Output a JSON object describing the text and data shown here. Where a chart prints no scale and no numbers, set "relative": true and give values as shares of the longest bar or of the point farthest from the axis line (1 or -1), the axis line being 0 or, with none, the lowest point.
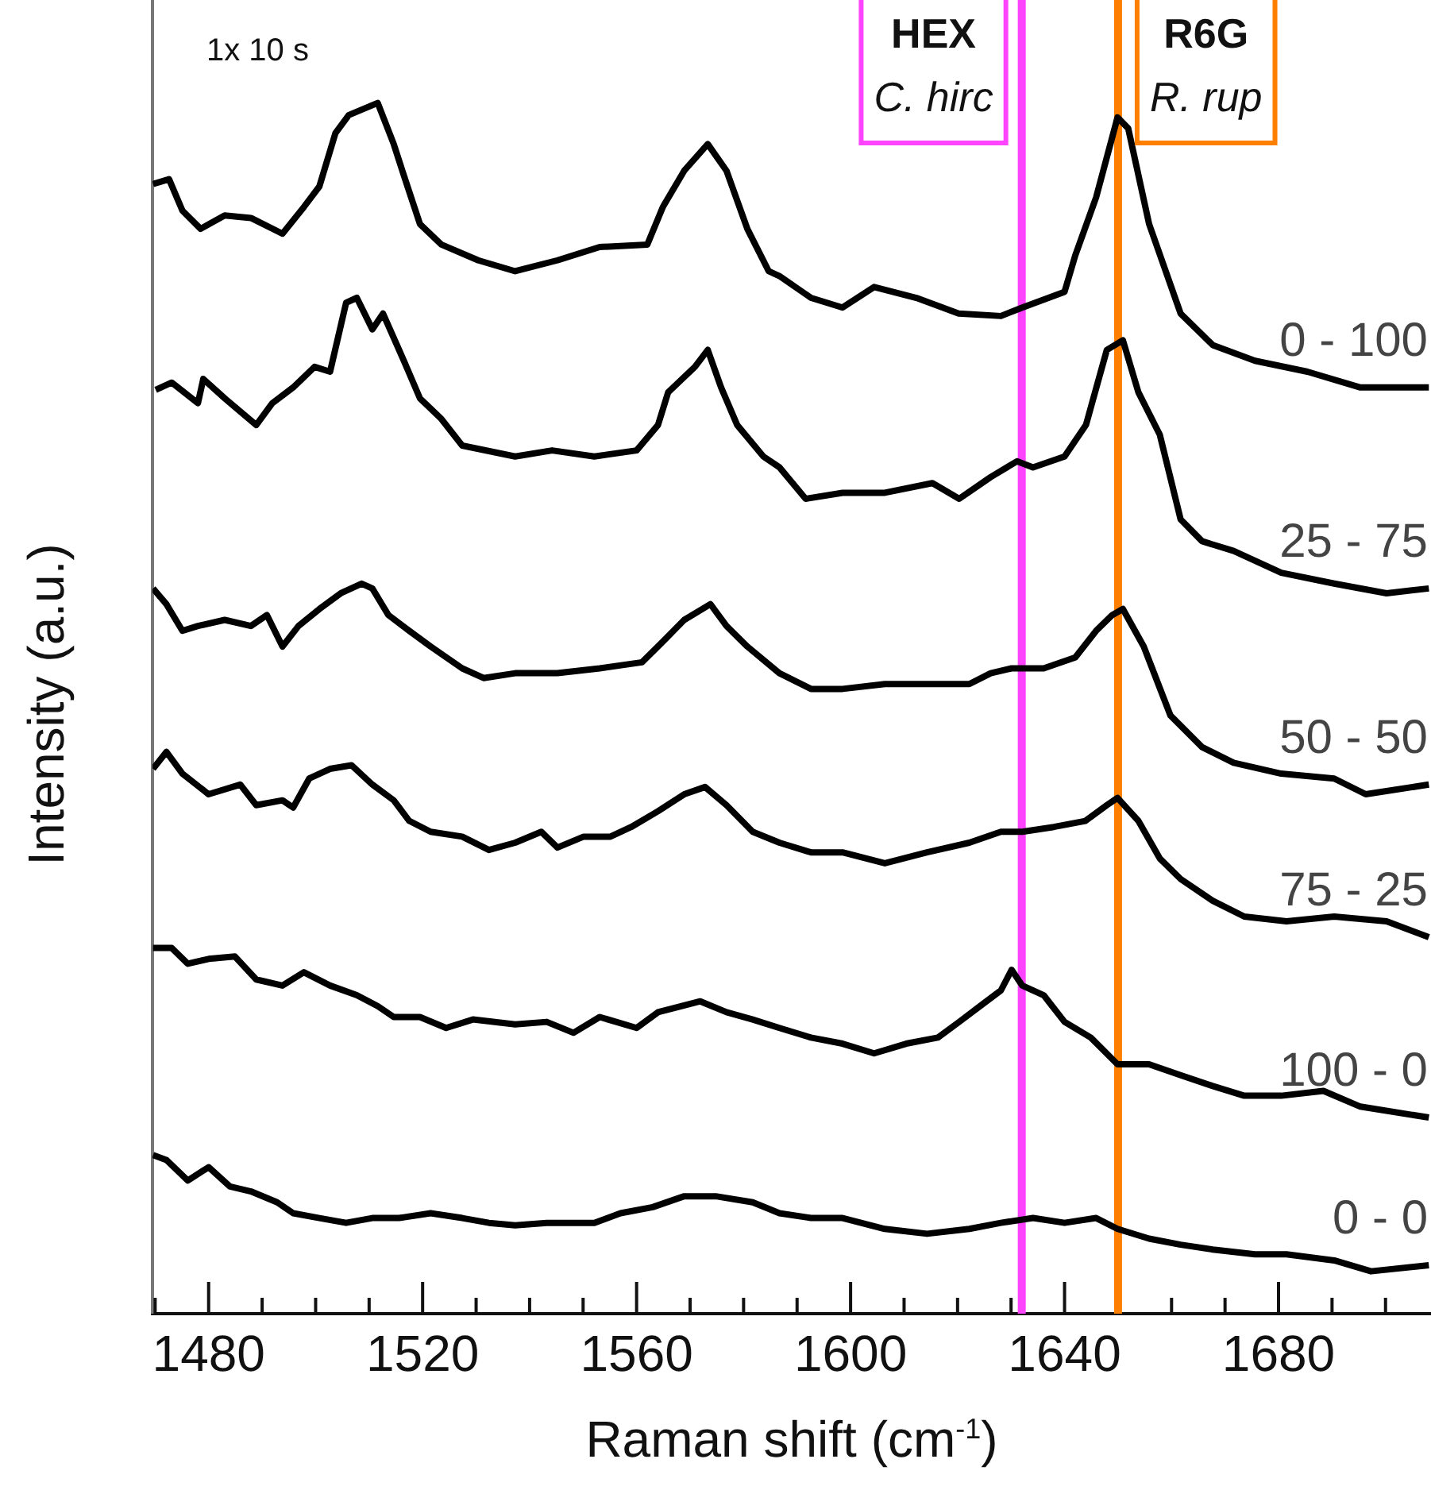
{
  "chart_data": {
    "type": "line",
    "relative": true,
    "xlabel": "Raman shift (cm$^{-1}$)",
    "ylabel": "Intensity (a.u.)",
    "xlim": [
      1469.5,
      1708.5
    ],
    "xticks": [
      {
        "value": 1470,
        "label": null
      },
      1480,
      {
        "value": 1490,
        "label": null
      },
      {
        "value": 1500,
        "label": null
      },
      {
        "value": 1510,
        "label": null
      },
      1520,
      {
        "value": 1530,
        "label": null
      },
      {
        "value": 1540,
        "label": null
      },
      {
        "value": 1550,
        "label": null
      },
      1560,
      {
        "value": 1570,
        "label": null
      },
      {
        "value": 1580,
        "label": null
      },
      {
        "value": 1590,
        "label": null
      },
      1600,
      {
        "value": 1610,
        "label": null
      },
      {
        "value": 1620,
        "label": null
      },
      {
        "value": 1630,
        "label": null
      },
      1640,
      {
        "value": 1650,
        "label": null
      },
      {
        "value": 1660,
        "label": null
      },
      {
        "value": 1670,
        "label": null
      },
      1680,
      {
        "value": 1690,
        "label": null
      },
      {
        "value": 1700,
        "label": null
      }
    ],
    "ref_lines": [
      {
        "axis": "x",
        "value": 1632,
        "label": "HEX\nC. hirc",
        "color": "#ff44ff"
      },
      {
        "axis": "x",
        "value": 1650,
        "label": "R6G\nR. rup",
        "color": "#ff8000"
      }
    ],
    "annotations": [
      "1x 10 s"
    ],
    "series": [
      {
        "name": "0 - 100",
        "color": "#000000",
        "x": [
          1469.6,
          1472.6,
          1475.1,
          1478.5,
          1483,
          1487.9,
          1493.8,
          1497.8,
          1500.7,
          1503.7,
          1506.2,
          1511.6,
          1514.6,
          1516.5,
          1519.5,
          1523.5,
          1530.4,
          1537.3,
          1545.2,
          1553.1,
          1562,
          1564.9,
          1568.9,
          1573.3,
          1576.8,
          1580.7,
          1584.7,
          1586.7,
          1592.6,
          1598.5,
          1604.4,
          1612.3,
          1620.2,
          1628.1,
          1632.1,
          1640,
          1642,
          1645.9,
          1649.9,
          1651.9,
          1655.8,
          1661.7,
          1667.7,
          1675.6,
          1685.4,
          1695.3,
          1708.1
        ],
        "values": [
          0.933,
          0.937,
          0.911,
          0.896,
          0.907,
          0.905,
          0.892,
          0.914,
          0.931,
          0.975,
          0.99,
          1,
          0.966,
          0.94,
          0.9,
          0.883,
          0.87,
          0.861,
          0.87,
          0.881,
          0.883,
          0.914,
          0.944,
          0.966,
          0.944,
          0.896,
          0.861,
          0.857,
          0.839,
          0.831,
          0.848,
          0.839,
          0.826,
          0.824,
          0.831,
          0.844,
          0.874,
          0.922,
          0.988,
          0.979,
          0.9,
          0.826,
          0.8,
          0.787,
          0.778,
          0.765,
          0.765
        ]
      },
      {
        "name": "25 - 75",
        "color": "#000000",
        "x": [
          1470.1,
          1473.1,
          1478,
          1479,
          1483,
          1488.9,
          1491.9,
          1495.8,
          1499.8,
          1502.7,
          1505.7,
          1507.7,
          1510.6,
          1512.6,
          1516.5,
          1519.5,
          1523.5,
          1527.4,
          1537.3,
          1544.2,
          1552.1,
          1560,
          1564,
          1565.9,
          1570.9,
          1573.3,
          1575.8,
          1578.8,
          1583.7,
          1586.7,
          1591.6,
          1598.5,
          1606.4,
          1615.3,
          1620.3,
          1626.2,
          1631.1,
          1634.1,
          1640,
          1644,
          1647.9,
          1650.9,
          1653.8,
          1657.8,
          1661.7,
          1665.7,
          1671.6,
          1680.5,
          1690.4,
          1700.2,
          1708.1
        ],
        "values": [
          0.763,
          0.769,
          0.752,
          0.772,
          0.756,
          0.734,
          0.752,
          0.765,
          0.782,
          0.778,
          0.835,
          0.839,
          0.813,
          0.826,
          0.787,
          0.756,
          0.739,
          0.717,
          0.708,
          0.713,
          0.708,
          0.713,
          0.734,
          0.761,
          0.782,
          0.796,
          0.765,
          0.734,
          0.708,
          0.699,
          0.673,
          0.678,
          0.678,
          0.686,
          0.673,
          0.691,
          0.704,
          0.699,
          0.708,
          0.734,
          0.796,
          0.804,
          0.761,
          0.726,
          0.656,
          0.638,
          0.63,
          0.612,
          0.603,
          0.595,
          0.599
        ]
      },
      {
        "name": "50 - 50",
        "color": "#000000",
        "x": [
          1469.6,
          1472.1,
          1475.1,
          1478,
          1483,
          1487.9,
          1490.9,
          1493.8,
          1496.8,
          1500.7,
          1504.7,
          1508.6,
          1510.6,
          1513.6,
          1517.5,
          1521.5,
          1527.4,
          1531.4,
          1537.3,
          1545.2,
          1553.1,
          1561,
          1564.9,
          1568.9,
          1573.8,
          1576.8,
          1580.7,
          1586.7,
          1592.6,
          1598.5,
          1606.4,
          1616.3,
          1622.2,
          1626.2,
          1630.1,
          1636.1,
          1642,
          1645.9,
          1648.9,
          1650.9,
          1654.8,
          1659.8,
          1665.7,
          1671.6,
          1680.5,
          1690.4,
          1696.3,
          1708.1
        ],
        "values": [
          0.599,
          0.586,
          0.564,
          0.568,
          0.573,
          0.568,
          0.577,
          0.551,
          0.568,
          0.582,
          0.595,
          0.603,
          0.599,
          0.577,
          0.564,
          0.551,
          0.533,
          0.525,
          0.529,
          0.529,
          0.533,
          0.538,
          0.555,
          0.573,
          0.586,
          0.568,
          0.551,
          0.529,
          0.516,
          0.516,
          0.52,
          0.52,
          0.52,
          0.529,
          0.533,
          0.533,
          0.542,
          0.564,
          0.577,
          0.582,
          0.551,
          0.494,
          0.468,
          0.455,
          0.446,
          0.442,
          0.429,
          0.437
        ]
      },
      {
        "name": "75 - 25",
        "color": "#000000",
        "x": [
          1469.6,
          1472.1,
          1475.1,
          1480,
          1485.9,
          1488.9,
          1493.8,
          1495.8,
          1498.8,
          1502.7,
          1506.7,
          1510.6,
          1514.6,
          1517.5,
          1521.5,
          1527.4,
          1532.4,
          1537.3,
          1542.2,
          1545.2,
          1550.1,
          1555.1,
          1559,
          1564,
          1568.9,
          1572.8,
          1576.8,
          1581.7,
          1586.7,
          1592.6,
          1598.5,
          1606.4,
          1614.3,
          1622.2,
          1628.1,
          1632.1,
          1638,
          1643.9,
          1647.9,
          1649.9,
          1653.8,
          1657.8,
          1661.7,
          1667.7,
          1673.6,
          1681.5,
          1690.4,
          1700.2,
          1708.1
        ],
        "values": [
          0.45,
          0.464,
          0.446,
          0.429,
          0.437,
          0.42,
          0.424,
          0.418,
          0.442,
          0.45,
          0.453,
          0.437,
          0.424,
          0.407,
          0.398,
          0.394,
          0.383,
          0.389,
          0.398,
          0.385,
          0.394,
          0.394,
          0.402,
          0.415,
          0.429,
          0.435,
          0.42,
          0.398,
          0.389,
          0.381,
          0.381,
          0.372,
          0.381,
          0.389,
          0.398,
          0.398,
          0.402,
          0.407,
          0.42,
          0.426,
          0.407,
          0.376,
          0.359,
          0.341,
          0.328,
          0.324,
          0.328,
          0.324,
          0.311
        ]
      },
      {
        "name": "100 - 0",
        "color": "#000000",
        "x": [
          1469.6,
          1473.1,
          1476.1,
          1480,
          1484.9,
          1488.9,
          1493.8,
          1497.8,
          1502.7,
          1507.7,
          1511.6,
          1514.6,
          1519.5,
          1524.4,
          1529.4,
          1537.3,
          1543.2,
          1548.2,
          1553.1,
          1560,
          1564,
          1571.9,
          1576.8,
          1581.7,
          1586.7,
          1592.6,
          1598.5,
          1604.4,
          1610.4,
          1616.3,
          1620.3,
          1624.2,
          1628.1,
          1630.1,
          1632.1,
          1636.1,
          1640,
          1644.9,
          1649.9,
          1655.8,
          1661.7,
          1667.7,
          1673.6,
          1680.5,
          1688.4,
          1695.3,
          1708.1
        ],
        "values": [
          0.302,
          0.302,
          0.289,
          0.293,
          0.295,
          0.276,
          0.271,
          0.282,
          0.271,
          0.263,
          0.254,
          0.245,
          0.245,
          0.236,
          0.243,
          0.239,
          0.241,
          0.232,
          0.245,
          0.236,
          0.249,
          0.258,
          0.249,
          0.243,
          0.236,
          0.228,
          0.223,
          0.215,
          0.223,
          0.228,
          0.241,
          0.254,
          0.267,
          0.284,
          0.271,
          0.263,
          0.241,
          0.228,
          0.206,
          0.206,
          0.197,
          0.188,
          0.18,
          0.18,
          0.184,
          0.171,
          0.162
        ]
      },
      {
        "name": "0 - 0",
        "color": "#000000",
        "x": [
          1469.6,
          1472.1,
          1476.1,
          1480,
          1484,
          1487.9,
          1492.8,
          1495.8,
          1500.7,
          1505.7,
          1510.6,
          1515.6,
          1521.5,
          1527.4,
          1532.4,
          1537.3,
          1543.2,
          1548.2,
          1552.1,
          1557,
          1563,
          1568.9,
          1574.8,
          1581.7,
          1586.7,
          1592.6,
          1598.5,
          1606.4,
          1614.3,
          1622.2,
          1628.1,
          1634.1,
          1640,
          1645.9,
          1649.9,
          1655.8,
          1661.7,
          1667.7,
          1675.6,
          1681.5,
          1690.4,
          1697.3,
          1708.1
        ],
        "values": [
          0.131,
          0.127,
          0.11,
          0.121,
          0.105,
          0.101,
          0.092,
          0.083,
          0.079,
          0.075,
          0.079,
          0.079,
          0.083,
          0.079,
          0.075,
          0.073,
          0.075,
          0.075,
          0.075,
          0.083,
          0.088,
          0.097,
          0.097,
          0.092,
          0.083,
          0.079,
          0.079,
          0.07,
          0.066,
          0.07,
          0.075,
          0.079,
          0.075,
          0.079,
          0.07,
          0.062,
          0.057,
          0.053,
          0.049,
          0.049,
          0.044,
          0.035,
          0.04
        ]
      }
    ]
  }
}
